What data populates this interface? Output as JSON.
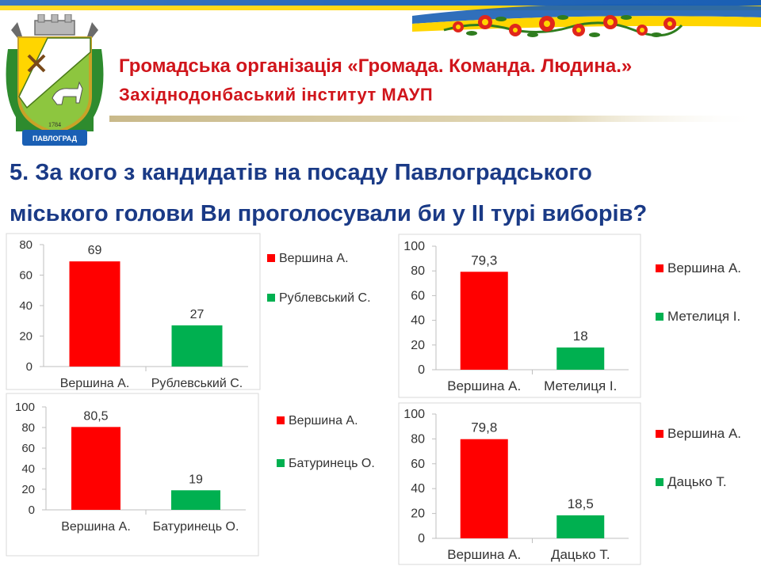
{
  "header": {
    "org_line1": "Громадська організація «Громада. Команда. Людина.»",
    "org_line2": "Західнодонбаський інститут МАУП",
    "emblem_year": "1784",
    "emblem_ribbon": "ПАВЛОГРАД"
  },
  "question": {
    "line1": "5. За кого з кандидатів на посаду Павлоградського",
    "line2": "міського голови Ви проголосували би у ІІ турі виборів?"
  },
  "colors": {
    "title_red": "#d0151b",
    "question_blue": "#1a3a86",
    "bar_red": "#ff0000",
    "bar_green": "#00b050",
    "flag_blue": "#1a5fb4",
    "flag_yellow": "#ffd500"
  },
  "chart_data": [
    {
      "type": "bar",
      "categories": [
        "Вершина А.",
        "Рублевський С."
      ],
      "values": [
        69,
        27
      ],
      "colors": [
        "#ff0000",
        "#00b050"
      ],
      "legend": [
        "Вершина А.",
        "Рублевський С."
      ],
      "legend_placement": "right",
      "ylim": [
        0,
        80
      ],
      "yticks": [
        0,
        20,
        40,
        60,
        80
      ],
      "grid": false
    },
    {
      "type": "bar",
      "categories": [
        "Вершина А.",
        "Метелиця І."
      ],
      "values": [
        79.3,
        18
      ],
      "value_labels": [
        "79,3",
        "18"
      ],
      "colors": [
        "#ff0000",
        "#00b050"
      ],
      "legend": [
        "Вершина А.",
        "Метелиця І."
      ],
      "legend_placement": "right",
      "ylim": [
        0,
        100
      ],
      "yticks": [
        0,
        20,
        40,
        60,
        80,
        100
      ],
      "grid": false
    },
    {
      "type": "bar",
      "categories": [
        "Вершина А.",
        "Батуринець О."
      ],
      "values": [
        80.5,
        19
      ],
      "value_labels": [
        "80,5",
        "19"
      ],
      "colors": [
        "#ff0000",
        "#00b050"
      ],
      "legend": [
        "Вершина А.",
        "Батуринець О."
      ],
      "legend_placement": "right",
      "ylim": [
        0,
        100
      ],
      "yticks": [
        0,
        20,
        40,
        60,
        80,
        100
      ],
      "grid": false
    },
    {
      "type": "bar",
      "categories": [
        "Вершина А.",
        "Дацько Т."
      ],
      "values": [
        79.8,
        18.5
      ],
      "value_labels": [
        "79,8",
        "18,5"
      ],
      "colors": [
        "#ff0000",
        "#00b050"
      ],
      "legend": [
        "Вершина А.",
        "Дацько Т."
      ],
      "legend_placement": "right",
      "ylim": [
        0,
        100
      ],
      "yticks": [
        0,
        20,
        40,
        60,
        80,
        100
      ],
      "grid": false
    }
  ]
}
